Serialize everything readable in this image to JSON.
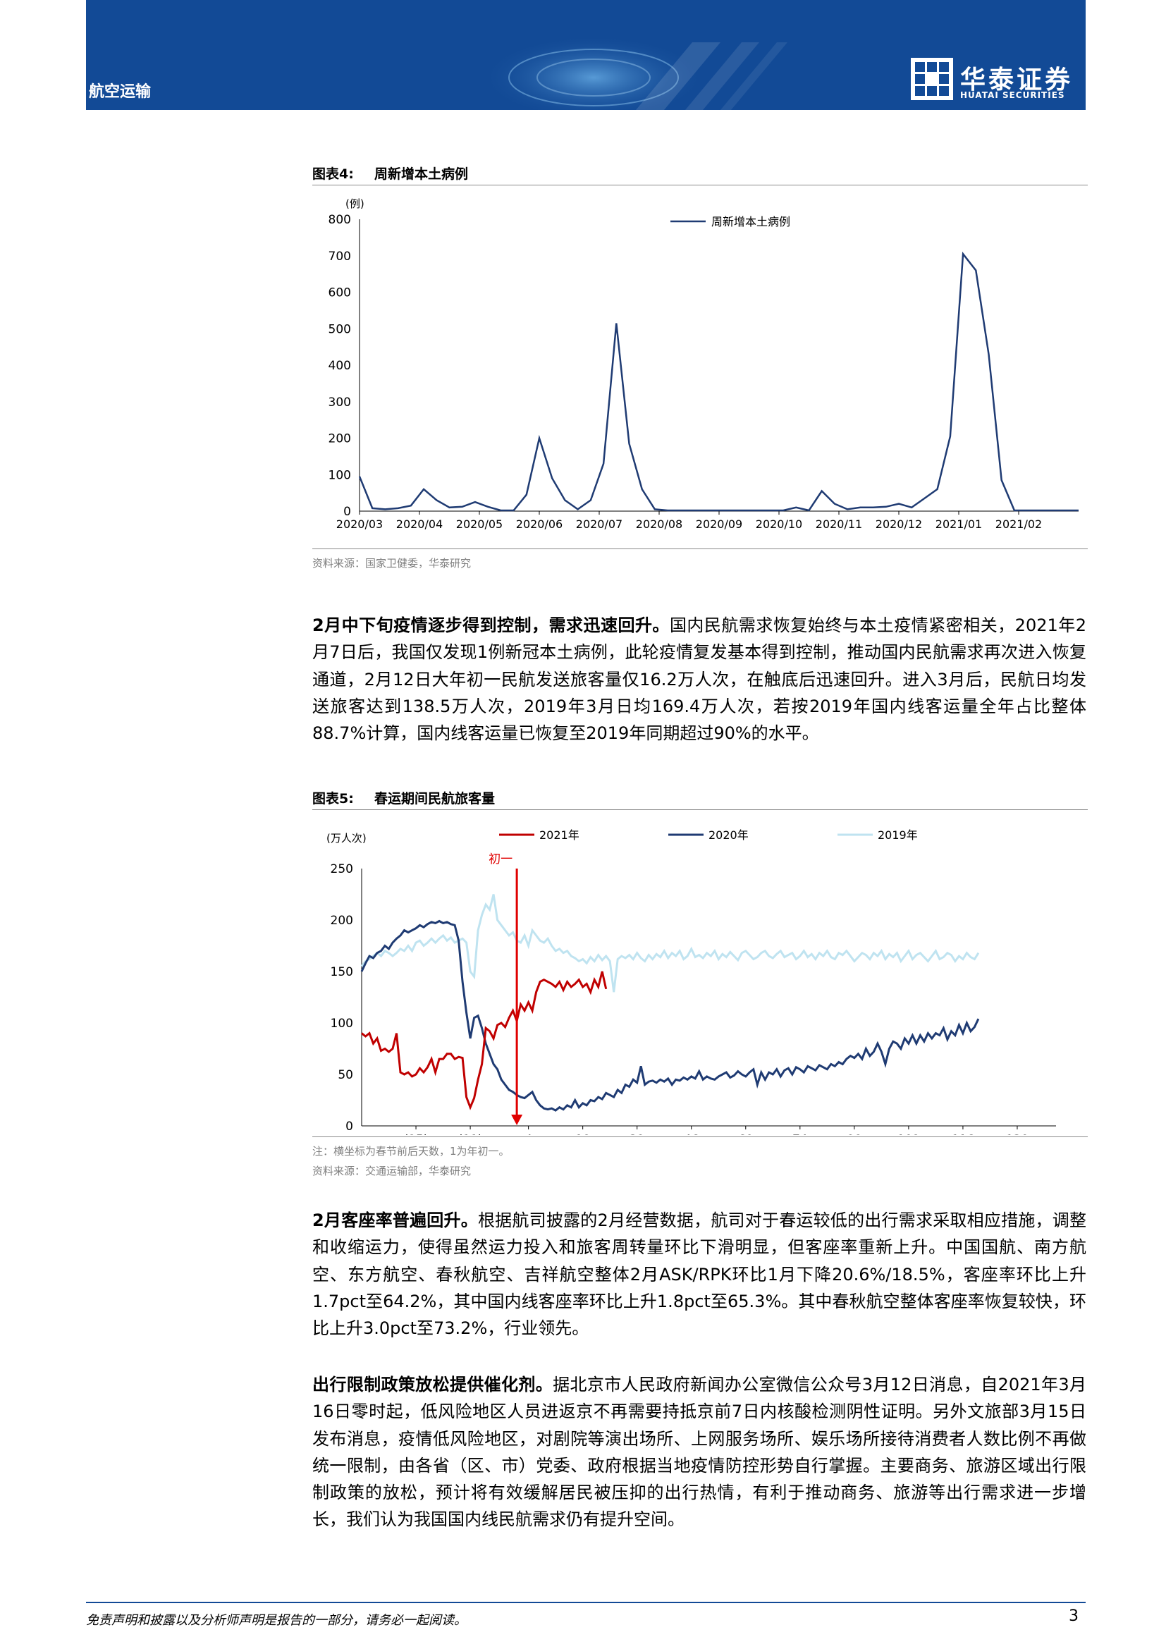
{
  "header": {
    "section": "航空运输",
    "logo_cn": "华泰证券",
    "logo_en": "HUATAI SECURITIES"
  },
  "fig4": {
    "label": "图表4:",
    "title": "周新增本土病例",
    "source": "资料来源：国家卫健委，华泰研究"
  },
  "fig5": {
    "label": "图表5:",
    "title": "春运期间民航旅客量",
    "note": "注：横坐标为春节前后天数，1为年初一。",
    "source": "资料来源：交通运输部，华泰研究"
  },
  "paragraphs": [
    {
      "lead": "2月中下旬疫情逐步得到控制，需求迅速回升。",
      "body": "国内民航需求恢复始终与本土疫情紧密相关，2021年2月7日后，我国仅发现1例新冠本土病例，此轮疫情复发基本得到控制，推动国内民航需求再次进入恢复通道，2月12日大年初一民航发送旅客量仅16.2万人次，在触底后迅速回升。进入3月后，民航日均发送旅客达到138.5万人次，2019年3月日均169.4万人次，若按2019年国内线客运量全年占比整体88.7%计算，国内线客运量已恢复至2019年同期超过90%的水平。"
    },
    {
      "lead": "2月客座率普遍回升。",
      "body": "根据航司披露的2月经营数据，航司对于春运较低的出行需求采取相应措施，调整和收缩运力，使得虽然运力投入和旅客周转量环比下滑明显，但客座率重新上升。中国国航、南方航空、东方航空、春秋航空、吉祥航空整体2月ASK/RPK环比1月下降20.6%/18.5%，客座率环比上升1.7pct至64.2%，其中国内线客座率环比上升1.8pct至65.3%。其中春秋航空整体客座率恢复较快，环比上升3.0pct至73.2%，行业领先。"
    },
    {
      "lead": "出行限制政策放松提供催化剂。",
      "body": "据北京市人民政府新闻办公室微信公众号3月12日消息，自2021年3月16日零时起，低风险地区人员进返京不再需要持抵京前7日内核酸检测阴性证明。另外文旅部3月15日发布消息，疫情低风险地区，对剧院等演出场所、上网服务场所、娱乐场所接待消费者人数比例不再做统一限制，由各省（区、市）党委、政府根据当地疫情防控形势自行掌握。主要商务、旅游区域出行限制政策的放松，预计将有效缓解居民被压抑的出行热情，有利于推动商务、旅游等出行需求进一步增长，我们认为我国国内线民航需求仍有提升空间。"
    }
  ],
  "footer": {
    "disclaimer": "免责声明和披露以及分析师声明是报告的一部分，请务必一起阅读。",
    "page": "3"
  },
  "colors": {
    "brand": "#124a96",
    "navy": "#1f3b73",
    "red": "#c00000",
    "light_blue": "#bfe3f0"
  },
  "chart_data": [
    {
      "type": "line",
      "title": "周新增本土病例",
      "ylabel": "(例)",
      "ylim": [
        0,
        800
      ],
      "yticks": [
        "0",
        "100",
        "200",
        "300",
        "400",
        "500",
        "600",
        "700",
        "800"
      ],
      "xticks": [
        "2020/03",
        "2020/04",
        "2020/05",
        "2020/06",
        "2020/07",
        "2020/08",
        "2020/09",
        "2020/10",
        "2020/11",
        "2020/12",
        "2021/01",
        "2021/02"
      ],
      "series": [
        {
          "name": "周新增本土病例",
          "values": [
            95,
            8,
            5,
            8,
            15,
            60,
            30,
            10,
            12,
            25,
            12,
            2,
            2,
            45,
            200,
            90,
            30,
            5,
            30,
            130,
            515,
            185,
            60,
            5,
            2,
            2,
            2,
            2,
            2,
            2,
            2,
            2,
            2,
            2,
            10,
            2,
            55,
            20,
            5,
            10,
            10,
            12,
            20,
            10,
            35,
            60,
            205,
            705,
            660,
            430,
            85,
            2,
            2,
            2,
            2,
            2,
            2
          ]
        }
      ]
    },
    {
      "type": "line",
      "title": "春运期间民航旅客量",
      "ylabel": "(万人次)",
      "ylim": [
        0,
        250
      ],
      "yticks": [
        "0",
        "50",
        "100",
        "150",
        "200",
        "250"
      ],
      "xlabel": "",
      "xticks": [
        "(25)",
        "(11)",
        "4",
        "18",
        "32",
        "46",
        "60",
        "74",
        "88",
        "102",
        "116",
        "130"
      ],
      "annotation": "初一",
      "series": [
        {
          "name": "2021年",
          "color": "#c00000",
          "x_start": -39,
          "values": [
            90,
            87,
            90,
            80,
            85,
            73,
            75,
            72,
            75,
            90,
            52,
            50,
            52,
            48,
            50,
            56,
            52,
            57,
            65,
            52,
            65,
            65,
            70,
            70,
            65,
            67,
            66,
            28,
            18,
            27,
            45,
            60,
            95,
            92,
            85,
            98,
            100,
            96,
            105,
            112,
            102,
            118,
            112,
            120,
            112,
            130,
            140,
            142,
            140,
            138,
            135,
            140,
            132,
            140,
            135,
            138,
            142,
            135,
            138,
            130,
            142,
            135,
            150,
            133
          ]
        },
        {
          "name": "2020年",
          "color": "#1f3b73",
          "x_start": -39,
          "values": [
            150,
            158,
            165,
            163,
            168,
            170,
            175,
            172,
            178,
            182,
            185,
            190,
            188,
            190,
            192,
            195,
            193,
            196,
            198,
            197,
            199,
            197,
            198,
            196,
            195,
            180,
            140,
            110,
            85,
            105,
            107,
            95,
            80,
            70,
            60,
            55,
            45,
            40,
            35,
            33,
            30,
            28,
            27,
            30,
            33,
            25,
            20,
            17,
            16,
            17,
            15,
            18,
            16,
            20,
            18,
            25,
            18,
            22,
            20,
            25,
            24,
            28,
            26,
            32,
            30,
            28,
            35,
            32,
            40,
            38,
            45,
            42,
            58,
            40,
            43,
            44,
            42,
            45,
            43,
            46,
            40,
            45,
            44,
            47,
            45,
            48,
            46,
            53,
            45,
            48,
            46,
            45,
            48,
            50,
            52,
            47,
            49,
            53,
            50,
            48,
            52,
            55,
            40,
            52,
            45,
            52,
            50,
            55,
            48,
            54,
            56,
            50,
            57,
            55,
            52,
            58,
            56,
            54,
            59,
            57,
            55,
            60,
            58,
            62,
            60,
            65,
            68,
            66,
            70,
            65,
            75,
            68,
            72,
            80,
            72,
            60,
            75,
            82,
            80,
            75,
            85,
            80,
            88,
            80,
            88,
            82,
            90,
            85,
            90,
            88,
            95,
            84,
            92,
            88,
            98,
            90,
            100,
            92,
            96,
            104
          ]
        },
        {
          "name": "2019年",
          "color": "#bfe3f0",
          "x_start": -39,
          "values": [
            155,
            160,
            162,
            165,
            168,
            165,
            170,
            168,
            165,
            168,
            172,
            170,
            175,
            170,
            178,
            180,
            175,
            178,
            182,
            178,
            182,
            185,
            180,
            183,
            178,
            180,
            182,
            178,
            150,
            145,
            190,
            205,
            215,
            210,
            225,
            200,
            195,
            190,
            185,
            188,
            180,
            178,
            185,
            175,
            190,
            185,
            180,
            178,
            182,
            175,
            170,
            172,
            168,
            170,
            165,
            163,
            160,
            162,
            158,
            164,
            160,
            166,
            161,
            165,
            160,
            130,
            162,
            165,
            163,
            166,
            162,
            168,
            163,
            160,
            166,
            162,
            167,
            164,
            170,
            163,
            168,
            165,
            170,
            162,
            165,
            172,
            164,
            166,
            163,
            168,
            165,
            170,
            162,
            167,
            164,
            169,
            165,
            161,
            168,
            170,
            166,
            162,
            164,
            168,
            170,
            165,
            163,
            167,
            170,
            164,
            166,
            168,
            162,
            165,
            170,
            164,
            167,
            162,
            168,
            165,
            170,
            164,
            162,
            168,
            166,
            170,
            165,
            160,
            164,
            168,
            166,
            162,
            168,
            165,
            170,
            162,
            167,
            164,
            168,
            160,
            165,
            170,
            162,
            166,
            168,
            164,
            160,
            165,
            170,
            162,
            164,
            168,
            166,
            160,
            165,
            162,
            168,
            164,
            162,
            168
          ]
        }
      ]
    }
  ]
}
